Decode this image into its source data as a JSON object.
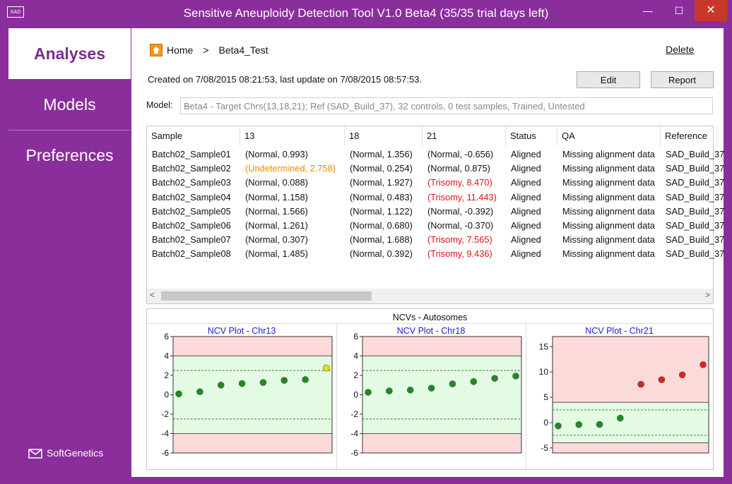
{
  "window": {
    "app_icon_text": "SAD",
    "title": "Sensitive Aneuploidy Detection Tool V1.0 Beta4 (35/35 trial days left)",
    "minimize": "—",
    "maximize": "☐",
    "close": "✕"
  },
  "sidebar": {
    "items": [
      {
        "label": "Analyses",
        "active": true
      },
      {
        "label": "Models",
        "active": false
      },
      {
        "label": "Preferences",
        "active": false
      }
    ],
    "brand": "SoftGenetics"
  },
  "breadcrumb": {
    "home": "Home",
    "separator": ">",
    "current": "Beta4_Test"
  },
  "delete_label": "Delete",
  "created_text": "Created on  7/08/2015  08:21:53, last update on  7/08/2015  08:57:53.",
  "buttons": {
    "edit": "Edit",
    "report": "Report"
  },
  "model": {
    "label": "Model:",
    "value": "Beta4  - Target Chrs(13,18,21); Ref (SAD_Build_37), 32 controls, 0 test samples, Trained, Untested"
  },
  "table": {
    "columns": [
      "Sample",
      "13",
      "18",
      "21",
      "Status",
      "QA",
      "Reference"
    ],
    "rows": [
      [
        "Batch02_Sample01",
        "(Normal, 0.993)",
        "(Normal, 1.356)",
        "(Normal, -0.656)",
        "Aligned",
        "Missing alignment data",
        "SAD_Build_37"
      ],
      [
        "Batch02_Sample02",
        "(Undetermined, 2.758)",
        "(Normal, 0.254)",
        "(Normal, 0.875)",
        "Aligned",
        "Missing alignment data",
        "SAD_Build_37"
      ],
      [
        "Batch02_Sample03",
        "(Normal, 0.088)",
        "(Normal, 1.927)",
        "(Trisomy, 8.470)",
        "Aligned",
        "Missing alignment data",
        "SAD_Build_37"
      ],
      [
        "Batch02_Sample04",
        "(Normal, 1.158)",
        "(Normal, 0.483)",
        "(Trisomy, 11.443)",
        "Aligned",
        "Missing alignment data",
        "SAD_Build_37"
      ],
      [
        "Batch02_Sample05",
        "(Normal, 1.566)",
        "(Normal, 1.122)",
        "(Normal, -0.392)",
        "Aligned",
        "Missing alignment data",
        "SAD_Build_37"
      ],
      [
        "Batch02_Sample06",
        "(Normal, 1.261)",
        "(Normal, 0.680)",
        "(Normal, -0.370)",
        "Aligned",
        "Missing alignment data",
        "SAD_Build_37"
      ],
      [
        "Batch02_Sample07",
        "(Normal, 0.307)",
        "(Normal, 1.688)",
        "(Trisomy, 7.565)",
        "Aligned",
        "Missing alignment data",
        "SAD_Build_37"
      ],
      [
        "Batch02_Sample08",
        "(Normal, 1.485)",
        "(Normal, 0.392)",
        "(Trisomy, 9.436)",
        "Aligned",
        "Missing alignment data",
        "SAD_Build_37"
      ]
    ],
    "status_colors": {
      "Normal": "#111111",
      "Undetermined": "#f08a00",
      "Trisomy": "#e81010"
    }
  },
  "plots_title": "NCVs - Autosomes",
  "colors": {
    "accent": "#8a2e9b",
    "normal_point": "#1e8c1e",
    "trisomy_point": "#e02020",
    "undetermined_point": "#f5e000",
    "normal_band": "#e3fbe3",
    "abnormal_band": "#fddada"
  },
  "chart_data": [
    {
      "type": "scatter",
      "title": "NCV Plot - Chr13",
      "ylim": [
        -6,
        6
      ],
      "yticks": [
        6,
        4,
        2,
        0,
        -2,
        -4,
        -6
      ],
      "x": [
        1,
        2,
        3,
        4,
        5,
        6,
        7,
        8
      ],
      "values": [
        0.088,
        0.307,
        0.993,
        1.158,
        1.261,
        1.485,
        1.566,
        2.758
      ],
      "point_classes": [
        "normal",
        "normal",
        "normal",
        "normal",
        "normal",
        "normal",
        "normal",
        "undetermined"
      ],
      "normal_range": [
        -4,
        4
      ],
      "threshold_lines": [
        2.5,
        -2.5
      ]
    },
    {
      "type": "scatter",
      "title": "NCV Plot - Chr18",
      "ylim": [
        -6,
        6
      ],
      "yticks": [
        6,
        4,
        2,
        0,
        -2,
        -4,
        -6
      ],
      "x": [
        1,
        2,
        3,
        4,
        5,
        6,
        7,
        8
      ],
      "values": [
        0.254,
        0.392,
        0.483,
        0.68,
        1.122,
        1.356,
        1.688,
        1.927
      ],
      "point_classes": [
        "normal",
        "normal",
        "normal",
        "normal",
        "normal",
        "normal",
        "normal",
        "normal"
      ],
      "normal_range": [
        -4,
        4
      ],
      "threshold_lines": [
        2.5,
        -2.5
      ]
    },
    {
      "type": "scatter",
      "title": "NCV Plot - Chr21",
      "ylim": [
        -6,
        17
      ],
      "yticks": [
        15,
        10,
        5,
        0,
        -5
      ],
      "x": [
        1,
        2,
        3,
        4,
        5,
        6,
        7,
        8
      ],
      "values": [
        -0.656,
        -0.392,
        -0.37,
        0.875,
        7.565,
        8.47,
        9.436,
        11.443
      ],
      "point_classes": [
        "normal",
        "normal",
        "normal",
        "normal",
        "trisomy",
        "trisomy",
        "trisomy",
        "trisomy"
      ],
      "normal_range": [
        -4,
        4
      ],
      "threshold_lines": [
        2.5,
        -2.5
      ]
    }
  ]
}
